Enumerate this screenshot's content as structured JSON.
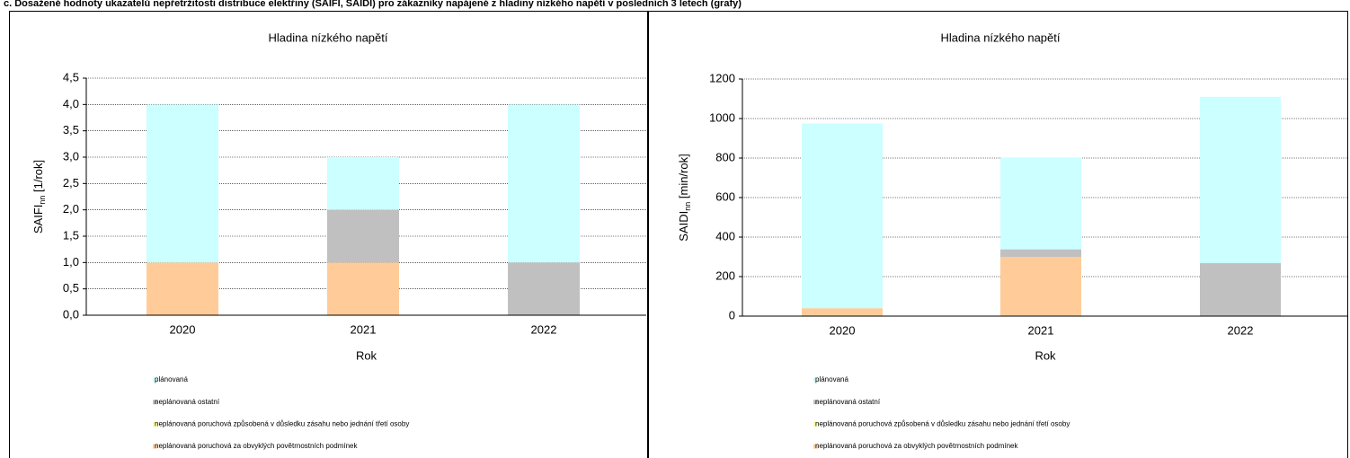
{
  "heading": "c. Dosažené hodnoty ukazatelů nepřetržitosti distribuce elektřiny (SAIFI, SAIDI) pro zákazníky napájené z hladiny nízkého napětí v posledních 3 letech (grafy)",
  "chart_data": [
    {
      "type": "bar",
      "stacked": true,
      "title": "Hladina nízkého napětí",
      "x_label": "Rok",
      "y_label": {
        "main": "SAIFI",
        "sub": "nn",
        "unit": " [1/rok]"
      },
      "categories": [
        "2020",
        "2021",
        "2022"
      ],
      "series": [
        {
          "name": "plánovaná",
          "color": "#ccffff",
          "values": [
            3,
            1,
            3
          ]
        },
        {
          "name": "neplánovaná ostatní",
          "color": "#c0c0c0",
          "values": [
            0,
            1,
            1
          ]
        },
        {
          "name": "neplánovaná poruchová způsobená v důsledku zásahu nebo jednání třetí osoby",
          "color": "#ffff99",
          "values": [
            0,
            0,
            0
          ]
        },
        {
          "name": "neplánovaná poruchová za obvyklých povětrnostních podmínek",
          "color": "#ffcc99",
          "values": [
            1,
            1,
            0
          ]
        }
      ],
      "ylim": [
        0,
        4.5
      ],
      "yticks": [
        {
          "value": 0,
          "label": "0,0"
        },
        {
          "value": 0.5,
          "label": "0,5"
        },
        {
          "value": 1,
          "label": "1,0"
        },
        {
          "value": 1.5,
          "label": "1,5"
        },
        {
          "value": 2,
          "label": "2,0"
        },
        {
          "value": 2.5,
          "label": "2,5"
        },
        {
          "value": 3,
          "label": "3,0"
        },
        {
          "value": 3.5,
          "label": "3,5"
        },
        {
          "value": 4,
          "label": "4,0"
        },
        {
          "value": 4.5,
          "label": "4,5"
        }
      ],
      "grid": true
    },
    {
      "type": "bar",
      "stacked": true,
      "title": "Hladina nízkého napětí",
      "x_label": "Rok",
      "y_label": {
        "main": "SAIDI",
        "sub": "nn",
        "unit": " [min/rok]"
      },
      "categories": [
        "2020",
        "2021",
        "2022"
      ],
      "series": [
        {
          "name": "plánovaná",
          "color": "#ccffff",
          "values": [
            935,
            465,
            842
          ]
        },
        {
          "name": "neplánovaná ostatní",
          "color": "#c0c0c0",
          "values": [
            0,
            38,
            268
          ]
        },
        {
          "name": "neplánovaná poruchová způsobená v důsledku zásahu nebo jednání třetí osoby",
          "color": "#ffff99",
          "values": [
            0,
            0,
            0
          ]
        },
        {
          "name": "neplánovaná poruchová za obvyklých povětrnostních podmínek",
          "color": "#ffcc99",
          "values": [
            40,
            300,
            0
          ]
        }
      ],
      "ylim": [
        0,
        1200
      ],
      "yticks": [
        0,
        200,
        400,
        600,
        800,
        1000,
        1200
      ],
      "grid": true
    }
  ]
}
